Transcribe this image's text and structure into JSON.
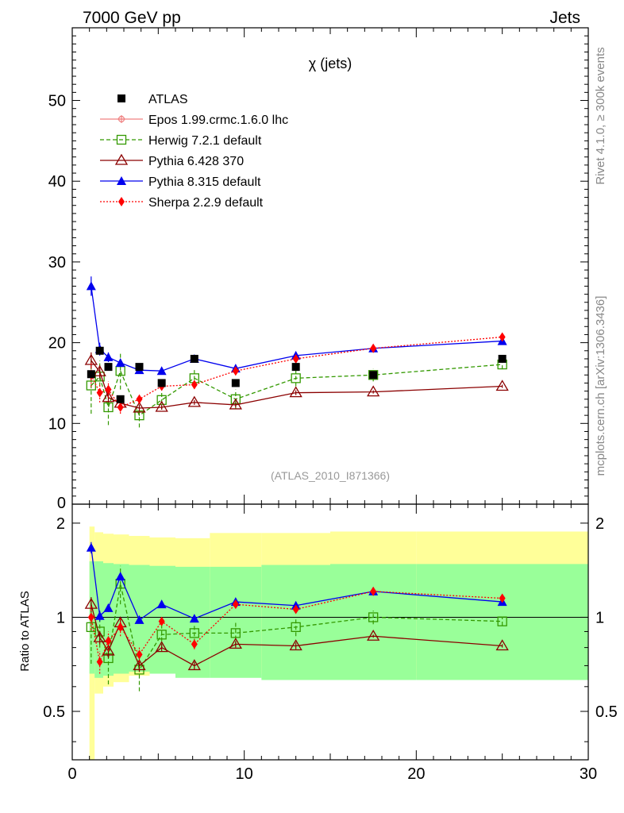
{
  "header": {
    "left": "7000 GeV pp",
    "right": "Jets",
    "side_rivet": "Rivet 4.1.0, ≥ 300k events",
    "side_site": "mcplots.cern.ch [arXiv:1306.3436]",
    "analysis_tag": "(ATLAS_2010_I871366)"
  },
  "colors": {
    "atlas": "#000000",
    "epos": "#f08080",
    "herwig": "#339900",
    "pythia6": "#8b0000",
    "pythia8": "#0000ee",
    "sherpa": "#ff0000",
    "band_outer": "#ffff99",
    "band_inner": "#99ff99"
  },
  "chart_data": [
    {
      "type": "line",
      "title": "χ (jets)",
      "xlabel": "",
      "ylabel": "",
      "xlim": [
        0,
        30
      ],
      "ylim": [
        0,
        59
      ],
      "yticks": [
        10,
        20,
        30,
        40,
        50
      ],
      "ytick_labels": [
        "10",
        "20",
        "30",
        "40",
        "50"
      ],
      "legend_position": "top-left",
      "series": [
        {
          "name": "ATLAS",
          "key": "atlas",
          "x": [
            1.1,
            1.6,
            2.1,
            2.8,
            3.9,
            5.2,
            7.1,
            9.5,
            13.0,
            17.5,
            25.0
          ],
          "y": [
            16.1,
            19.0,
            17.0,
            13.0,
            17.0,
            15.0,
            18.0,
            15.0,
            17.0,
            16.0,
            18.0
          ]
        },
        {
          "name": "Epos 1.99.crmc.1.6.0 lhc",
          "key": "epos",
          "x": [],
          "y": []
        },
        {
          "name": "Herwig 7.2.1 default",
          "key": "herwig",
          "x": [
            1.1,
            1.6,
            2.1,
            2.8,
            3.9,
            5.2,
            7.1,
            9.5,
            13.0,
            17.5,
            25.0
          ],
          "y": [
            14.7,
            15.8,
            12.0,
            16.5,
            11.0,
            12.9,
            15.6,
            13.0,
            15.6,
            16.0,
            17.3
          ],
          "err": [
            3.5,
            2.0,
            2.2,
            2.3,
            1.5,
            1.2,
            1.0,
            1.2,
            1.0,
            0.8,
            0.6
          ]
        },
        {
          "name": "Pythia 6.428 370",
          "key": "pythia6",
          "x": [
            1.1,
            1.6,
            2.1,
            2.8,
            3.9,
            5.2,
            7.1,
            9.5,
            13.0,
            17.5,
            25.0
          ],
          "y": [
            17.8,
            16.4,
            13.2,
            12.5,
            11.9,
            12.0,
            12.6,
            12.3,
            13.8,
            13.9,
            14.6
          ],
          "err": [
            1.0,
            0.8,
            0.6,
            0.5,
            0.4,
            0.3,
            0.3,
            0.3,
            0.3,
            0.2,
            0.2
          ]
        },
        {
          "name": "Pythia 8.315 default",
          "key": "pythia8",
          "x": [
            1.1,
            1.6,
            2.1,
            2.8,
            3.9,
            5.2,
            7.1,
            9.5,
            13.0,
            17.5,
            25.0
          ],
          "y": [
            27.0,
            19.2,
            18.2,
            17.5,
            16.6,
            16.5,
            18.0,
            16.8,
            18.4,
            19.3,
            20.2
          ],
          "err": [
            1.2,
            0.8,
            0.6,
            0.5,
            0.4,
            0.3,
            0.3,
            0.3,
            0.3,
            0.2,
            0.2
          ]
        },
        {
          "name": "Sherpa 2.2.9 default",
          "key": "sherpa",
          "x": [
            1.1,
            1.6,
            2.1,
            2.8,
            3.9,
            5.2,
            7.1,
            9.5,
            13.0,
            17.5,
            25.0
          ],
          "y": [
            16.0,
            13.8,
            14.2,
            12.0,
            13.0,
            14.6,
            14.8,
            16.5,
            18.0,
            19.3,
            20.7
          ],
          "err": [
            1.5,
            1.2,
            1.0,
            0.8,
            0.6,
            0.5,
            0.5,
            0.5,
            0.4,
            0.3,
            0.3
          ]
        }
      ]
    },
    {
      "type": "line",
      "title": "",
      "xlabel": "",
      "ylabel": "Ratio to ATLAS",
      "xlim": [
        0,
        30
      ],
      "ylim": [
        0.35,
        2.3
      ],
      "yscale": "log",
      "yticks": [
        0.5,
        1,
        2
      ],
      "ytick_labels": [
        "0.5",
        "1",
        "2"
      ],
      "xticks": [
        0,
        10,
        20,
        30
      ],
      "xtick_labels": [
        "0",
        "10",
        "20",
        "30"
      ],
      "bands": {
        "edges": [
          1.0,
          1.3,
          1.8,
          2.4,
          3.3,
          4.5,
          6.0,
          8.0,
          11.0,
          15.0,
          20.0,
          30.0
        ],
        "outer_lo": [
          0.1,
          0.57,
          0.6,
          0.62,
          0.65,
          0.67,
          0.68,
          0.68,
          0.66,
          0.65,
          0.64
        ],
        "outer_hi": [
          1.95,
          1.87,
          1.85,
          1.84,
          1.82,
          1.8,
          1.79,
          1.86,
          1.86,
          1.88,
          1.88
        ],
        "inner_lo": [
          0.66,
          0.64,
          0.65,
          0.66,
          0.67,
          0.66,
          0.64,
          0.64,
          0.63,
          0.63,
          0.63
        ],
        "inner_hi": [
          1.51,
          1.51,
          1.49,
          1.48,
          1.47,
          1.46,
          1.45,
          1.45,
          1.47,
          1.48,
          1.48
        ]
      },
      "series": [
        {
          "name": "Herwig 7.2.1 default",
          "key": "herwig",
          "x": [
            1.1,
            1.6,
            2.1,
            2.8,
            3.9,
            5.2,
            7.1,
            9.5,
            13.0,
            17.5,
            25.0
          ],
          "y": [
            0.93,
            0.9,
            0.74,
            1.28,
            0.68,
            0.88,
            0.89,
            0.89,
            0.93,
            1.0,
            0.97
          ],
          "err": [
            0.22,
            0.1,
            0.13,
            0.18,
            0.1,
            0.08,
            0.06,
            0.08,
            0.06,
            0.05,
            0.03
          ]
        },
        {
          "name": "Pythia 6.428 370",
          "key": "pythia6",
          "x": [
            1.1,
            1.6,
            2.1,
            2.8,
            3.9,
            5.2,
            7.1,
            9.5,
            13.0,
            17.5,
            25.0
          ],
          "y": [
            1.1,
            0.86,
            0.78,
            0.96,
            0.7,
            0.8,
            0.7,
            0.82,
            0.81,
            0.87,
            0.81
          ],
          "err": [
            0.06,
            0.04,
            0.04,
            0.04,
            0.03,
            0.02,
            0.02,
            0.02,
            0.02,
            0.01,
            0.01
          ]
        },
        {
          "name": "Pythia 8.315 default",
          "key": "pythia8",
          "x": [
            1.1,
            1.6,
            2.1,
            2.8,
            3.9,
            5.2,
            7.1,
            9.5,
            13.0,
            17.5,
            25.0
          ],
          "y": [
            1.67,
            1.01,
            1.07,
            1.35,
            0.98,
            1.1,
            0.99,
            1.12,
            1.09,
            1.21,
            1.12
          ],
          "err": [
            0.07,
            0.04,
            0.03,
            0.04,
            0.02,
            0.02,
            0.02,
            0.02,
            0.02,
            0.01,
            0.01
          ]
        },
        {
          "name": "Sherpa 2.2.9 default",
          "key": "sherpa",
          "x": [
            1.1,
            1.6,
            2.1,
            2.8,
            3.9,
            5.2,
            7.1,
            9.5,
            13.0,
            17.5,
            25.0
          ],
          "y": [
            1.0,
            0.72,
            0.84,
            0.93,
            0.76,
            0.97,
            0.82,
            1.1,
            1.06,
            1.21,
            1.15
          ],
          "err": [
            0.09,
            0.06,
            0.06,
            0.06,
            0.04,
            0.03,
            0.03,
            0.03,
            0.02,
            0.02,
            0.02
          ]
        }
      ]
    }
  ]
}
